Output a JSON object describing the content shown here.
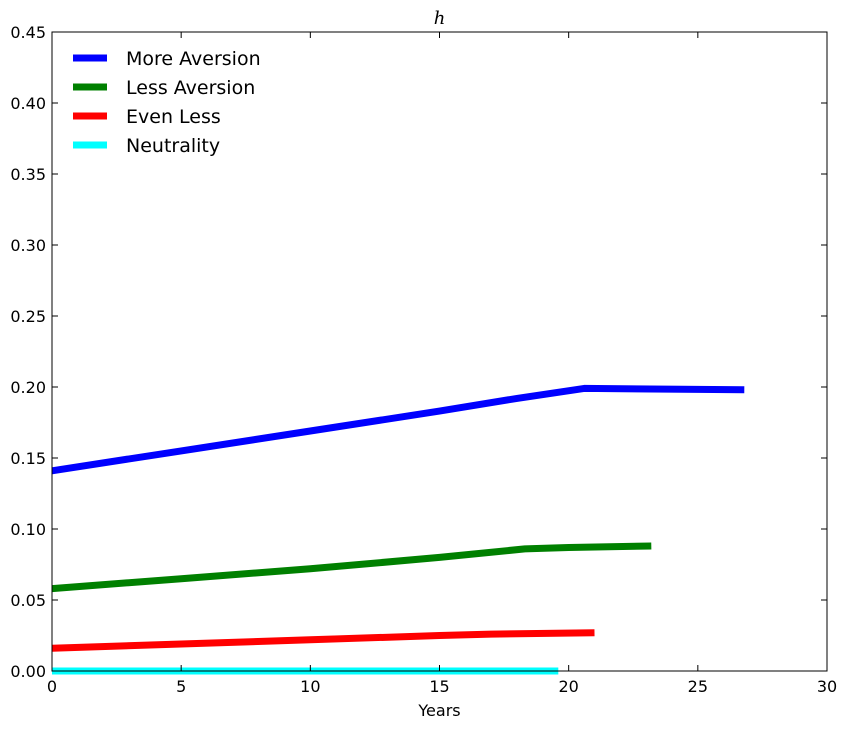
{
  "chart_data": {
    "type": "line",
    "title": "h",
    "xlabel": "Years",
    "ylabel": "",
    "xlim": [
      0,
      30
    ],
    "ylim": [
      0,
      0.45
    ],
    "x_ticks": [
      0,
      5,
      10,
      15,
      20,
      25,
      30
    ],
    "y_ticks": [
      0.0,
      0.05,
      0.1,
      0.15,
      0.2,
      0.25,
      0.3,
      0.35,
      0.4,
      0.45
    ],
    "x_tick_labels": [
      "0",
      "5",
      "10",
      "15",
      "20",
      "25",
      "30"
    ],
    "y_tick_labels": [
      "0.00",
      "0.05",
      "0.10",
      "0.15",
      "0.20",
      "0.25",
      "0.30",
      "0.35",
      "0.40",
      "0.45"
    ],
    "grid": false,
    "legend_position": "top-left",
    "series": [
      {
        "name": "More Aversion",
        "color": "#0000ff",
        "x": [
          0,
          5,
          10,
          15,
          18,
          20.6,
          26.8
        ],
        "y": [
          0.141,
          0.155,
          0.169,
          0.183,
          0.192,
          0.199,
          0.198
        ]
      },
      {
        "name": "Less Aversion",
        "color": "#008000",
        "x": [
          0,
          5,
          10,
          15,
          18.3,
          20,
          23.2
        ],
        "y": [
          0.058,
          0.065,
          0.072,
          0.08,
          0.086,
          0.087,
          0.088
        ]
      },
      {
        "name": "Even Less",
        "color": "#ff0000",
        "x": [
          0,
          5,
          10,
          15,
          17,
          21
        ],
        "y": [
          0.016,
          0.019,
          0.022,
          0.025,
          0.026,
          0.027
        ]
      },
      {
        "name": "Neutrality",
        "color": "#00ffff",
        "x": [
          0,
          19.6
        ],
        "y": [
          0.0,
          0.0
        ]
      }
    ]
  }
}
